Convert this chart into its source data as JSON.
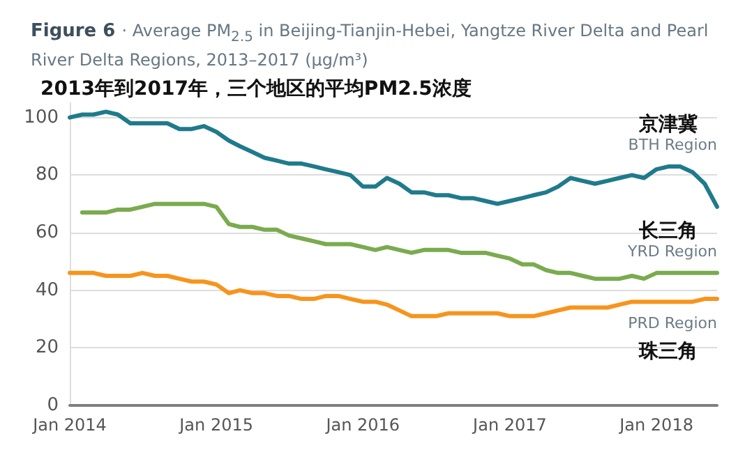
{
  "chart_data": {
    "type": "line",
    "title": "Figure 6 · Average PM$_{2.5}$ in Beijing-Tianjin-Hebei, Yangtze River Delta and Pearl River Delta Regions, 2013–2017 (μg/m³)",
    "subtitle": "2013年到2017年，三个地区的平均PM2.5浓度",
    "x": [
      "2014-01",
      "2014-02",
      "2014-03",
      "2014-04",
      "2014-05",
      "2014-06",
      "2014-07",
      "2014-08",
      "2014-09",
      "2014-10",
      "2014-11",
      "2014-12",
      "2015-01",
      "2015-02",
      "2015-03",
      "2015-04",
      "2015-05",
      "2015-06",
      "2015-07",
      "2015-08",
      "2015-09",
      "2015-10",
      "2015-11",
      "2015-12",
      "2016-01",
      "2016-02",
      "2016-03",
      "2016-04",
      "2016-05",
      "2016-06",
      "2016-07",
      "2016-08",
      "2016-09",
      "2016-10",
      "2016-11",
      "2016-12",
      "2017-01",
      "2017-02",
      "2017-03",
      "2017-04",
      "2017-05",
      "2017-06",
      "2017-07",
      "2017-08",
      "2017-09",
      "2017-10",
      "2017-11",
      "2017-12",
      "2018-01",
      "2018-02",
      "2018-03",
      "2018-04",
      "2018-05",
      "2018-06"
    ],
    "series": [
      {
        "name": "BTH Region",
        "color": "#1f7a8c",
        "values": [
          100,
          101,
          101,
          102,
          101,
          98,
          98,
          98,
          98,
          96,
          96,
          97,
          95,
          92,
          90,
          88,
          86,
          85,
          84,
          84,
          83,
          82,
          81,
          80,
          76,
          76,
          79,
          77,
          74,
          74,
          73,
          73,
          72,
          72,
          71,
          70,
          71,
          72,
          73,
          74,
          76,
          79,
          78,
          77,
          78,
          79,
          80,
          79,
          82,
          83,
          83,
          81,
          77,
          69
        ]
      },
      {
        "name": "YRD Region",
        "color": "#7aab4f",
        "values": [
          null,
          67,
          67,
          67,
          68,
          68,
          69,
          70,
          70,
          70,
          70,
          70,
          69,
          63,
          62,
          62,
          61,
          61,
          59,
          58,
          57,
          56,
          56,
          56,
          55,
          54,
          55,
          54,
          53,
          54,
          54,
          54,
          53,
          53,
          53,
          52,
          51,
          49,
          49,
          47,
          46,
          46,
          45,
          44,
          44,
          44,
          45,
          44,
          46,
          46,
          46,
          46,
          46,
          46
        ]
      },
      {
        "name": "PRD Region",
        "color": "#f7941d",
        "values": [
          46,
          46,
          46,
          45,
          45,
          45,
          46,
          45,
          45,
          44,
          43,
          43,
          42,
          39,
          40,
          39,
          39,
          38,
          38,
          37,
          37,
          38,
          38,
          37,
          36,
          36,
          35,
          33,
          31,
          31,
          31,
          32,
          32,
          32,
          32,
          32,
          31,
          31,
          31,
          32,
          33,
          34,
          34,
          34,
          34,
          35,
          36,
          36,
          36,
          36,
          36,
          36,
          37,
          37
        ]
      }
    ],
    "annotations": [
      "京津冀",
      "长三角",
      "珠三角"
    ],
    "xlim": [
      "2014-01",
      "2018-06"
    ],
    "xticks": [
      {
        "value": "2014-01",
        "label": "Jan 2014"
      },
      {
        "value": "2015-01",
        "label": "Jan 2015"
      },
      {
        "value": "2016-01",
        "label": "Jan 2016"
      },
      {
        "value": "2017-01",
        "label": "Jan 2017"
      },
      {
        "value": "2018-01",
        "label": "Jan 2018"
      }
    ],
    "ylim": [
      0,
      105
    ],
    "yticks": [
      0,
      20,
      40,
      60,
      80,
      100
    ],
    "grid": "y",
    "legend": false,
    "marker": "none",
    "line_style": "solid"
  }
}
